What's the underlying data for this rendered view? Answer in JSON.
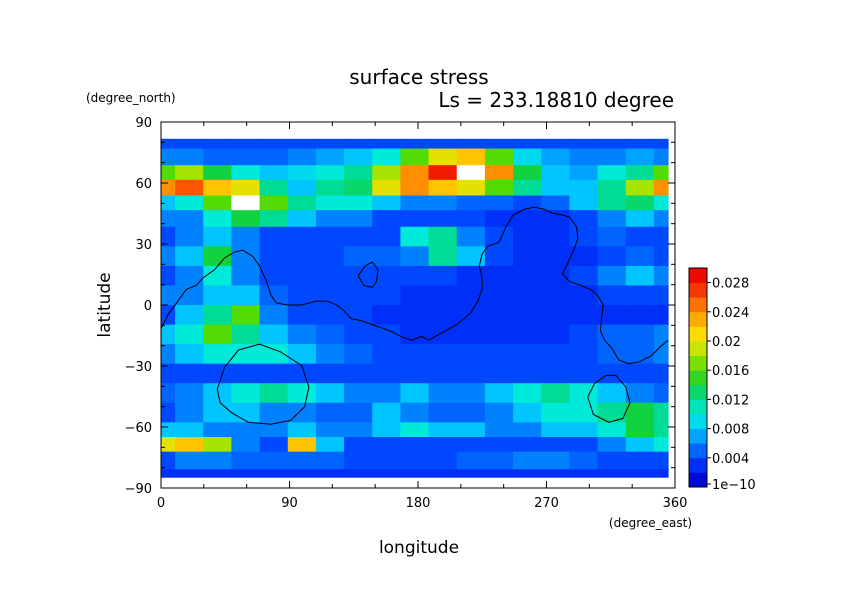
{
  "chart_data": {
    "type": "heatmap",
    "title": "surface stress",
    "subtitle": "Ls = 233.18810 degree",
    "xlabel": "longitude",
    "ylabel": "latitude",
    "x_units": "(degree_east)",
    "y_units": "(degree_north)",
    "xlim": [
      0,
      360
    ],
    "ylim": [
      -90,
      90
    ],
    "x_ticks": [
      "0",
      "90",
      "180",
      "270",
      "360"
    ],
    "y_ticks": [
      "90",
      "60",
      "30",
      "0",
      "−30",
      "−60",
      "−90"
    ],
    "colorbar": {
      "min": 0,
      "max": 0.03,
      "labels": [
        "1e−10",
        "0.004",
        "0.008",
        "0.012",
        "0.016",
        "0.02",
        "0.024",
        "0.028"
      ],
      "label_values": [
        0,
        0.004,
        0.008,
        0.012,
        0.016,
        0.02,
        0.024,
        0.028
      ]
    },
    "lon": [
      0,
      20,
      40,
      60,
      80,
      100,
      120,
      140,
      160,
      180,
      200,
      220,
      240,
      260,
      280,
      300,
      320,
      340,
      360
    ],
    "lat": [
      85,
      75,
      68,
      60,
      52,
      45,
      35,
      25,
      15,
      5,
      -5,
      -15,
      -25,
      -35,
      -45,
      -55,
      -65,
      -70,
      -80,
      -88
    ],
    "values": [
      [
        0.004,
        0.004,
        0.004,
        0.004,
        0.004,
        0.004,
        0.004,
        0.004,
        0.004,
        0.004,
        0.004,
        0.004,
        0.004,
        0.004,
        0.004,
        0.004,
        0.004,
        0.004,
        0.004
      ],
      [
        0.006,
        0.006,
        0.005,
        0.005,
        0.005,
        0.006,
        0.007,
        0.008,
        0.01,
        0.016,
        0.02,
        0.022,
        0.016,
        0.009,
        0.007,
        0.006,
        0.006,
        0.007,
        0.006
      ],
      [
        0.016,
        0.018,
        0.014,
        0.01,
        0.008,
        0.009,
        0.01,
        0.012,
        0.018,
        0.024,
        0.028,
        0.03,
        0.024,
        0.014,
        0.008,
        0.007,
        0.01,
        0.012,
        0.016
      ],
      [
        0.024,
        0.026,
        0.022,
        0.02,
        0.012,
        0.008,
        0.012,
        0.013,
        0.02,
        0.024,
        0.022,
        0.02,
        0.016,
        0.012,
        0.008,
        0.008,
        0.012,
        0.018,
        0.024
      ],
      [
        0.008,
        0.01,
        0.016,
        0.03,
        0.016,
        0.012,
        0.01,
        0.01,
        0.008,
        0.006,
        0.006,
        0.005,
        0.005,
        0.004,
        0.005,
        0.008,
        0.012,
        0.013,
        0.01
      ],
      [
        0.006,
        0.006,
        0.01,
        0.014,
        0.012,
        0.008,
        0.006,
        0.006,
        0.004,
        0.004,
        0.004,
        0.004,
        0.003,
        0.003,
        0.003,
        0.004,
        0.006,
        0.008,
        0.006
      ],
      [
        0.004,
        0.006,
        0.008,
        0.006,
        0.004,
        0.004,
        0.004,
        0.004,
        0.004,
        0.01,
        0.012,
        0.006,
        0.004,
        0.003,
        0.003,
        0.004,
        0.005,
        0.004,
        0.004
      ],
      [
        0.006,
        0.008,
        0.014,
        0.006,
        0.004,
        0.004,
        0.004,
        0.005,
        0.005,
        0.006,
        0.012,
        0.008,
        0.004,
        0.003,
        0.003,
        0.003,
        0.004,
        0.005,
        0.004
      ],
      [
        0.004,
        0.006,
        0.01,
        0.006,
        0.004,
        0.004,
        0.004,
        0.004,
        0.004,
        0.004,
        0.004,
        0.003,
        0.003,
        0.003,
        0.003,
        0.004,
        0.006,
        0.008,
        0.006
      ],
      [
        0.006,
        0.006,
        0.008,
        0.008,
        0.005,
        0.004,
        0.004,
        0.004,
        0.004,
        0.003,
        0.003,
        0.003,
        0.003,
        0.003,
        0.003,
        0.003,
        0.004,
        0.004,
        0.004
      ],
      [
        0.004,
        0.008,
        0.012,
        0.016,
        0.006,
        0.004,
        0.004,
        0.004,
        0.003,
        0.003,
        0.003,
        0.003,
        0.003,
        0.003,
        0.003,
        0.003,
        0.003,
        0.003,
        0.003
      ],
      [
        0.008,
        0.01,
        0.016,
        0.012,
        0.008,
        0.006,
        0.005,
        0.004,
        0.004,
        0.003,
        0.003,
        0.003,
        0.003,
        0.003,
        0.003,
        0.004,
        0.005,
        0.005,
        0.006
      ],
      [
        0.006,
        0.008,
        0.01,
        0.01,
        0.01,
        0.008,
        0.006,
        0.005,
        0.004,
        0.004,
        0.004,
        0.004,
        0.004,
        0.004,
        0.004,
        0.004,
        0.005,
        0.005,
        0.006
      ],
      [
        0.004,
        0.004,
        0.004,
        0.004,
        0.004,
        0.004,
        0.004,
        0.004,
        0.004,
        0.004,
        0.004,
        0.004,
        0.004,
        0.004,
        0.004,
        0.004,
        0.004,
        0.004,
        0.004
      ],
      [
        0.005,
        0.006,
        0.008,
        0.01,
        0.012,
        0.01,
        0.008,
        0.006,
        0.006,
        0.008,
        0.006,
        0.006,
        0.008,
        0.01,
        0.012,
        0.01,
        0.008,
        0.006,
        0.005
      ],
      [
        0.004,
        0.006,
        0.008,
        0.008,
        0.006,
        0.006,
        0.005,
        0.005,
        0.008,
        0.006,
        0.005,
        0.005,
        0.006,
        0.008,
        0.01,
        0.01,
        0.012,
        0.014,
        0.012
      ],
      [
        0.008,
        0.008,
        0.006,
        0.006,
        0.006,
        0.008,
        0.006,
        0.006,
        0.008,
        0.01,
        0.008,
        0.008,
        0.006,
        0.006,
        0.008,
        0.008,
        0.01,
        0.014,
        0.012
      ],
      [
        0.02,
        0.022,
        0.018,
        0.006,
        0.004,
        0.022,
        0.008,
        0.004,
        0.004,
        0.004,
        0.004,
        0.004,
        0.004,
        0.004,
        0.004,
        0.004,
        0.006,
        0.008,
        0.01
      ],
      [
        0.004,
        0.006,
        0.006,
        0.005,
        0.005,
        0.005,
        0.005,
        0.004,
        0.004,
        0.004,
        0.004,
        0.005,
        0.005,
        0.006,
        0.006,
        0.005,
        0.004,
        0.004,
        0.004
      ],
      [
        0.003,
        0.003,
        0.003,
        0.003,
        0.003,
        0.003,
        0.003,
        0.003,
        0.003,
        0.003,
        0.003,
        0.003,
        0.003,
        0.003,
        0.003,
        0.003,
        0.003,
        0.003,
        0.003
      ]
    ],
    "contour_lines": [
      {
        "name": "main-continent",
        "points": [
          [
            0,
            -12
          ],
          [
            5,
            -5
          ],
          [
            12,
            2
          ],
          [
            18,
            8
          ],
          [
            25,
            10
          ],
          [
            30,
            14
          ],
          [
            38,
            18
          ],
          [
            45,
            24
          ],
          [
            52,
            27
          ],
          [
            58,
            28
          ],
          [
            65,
            25
          ],
          [
            70,
            20
          ],
          [
            75,
            12
          ],
          [
            78,
            5
          ],
          [
            82,
            1
          ],
          [
            90,
            0
          ],
          [
            100,
            0
          ],
          [
            110,
            2
          ],
          [
            118,
            2
          ],
          [
            125,
            0
          ],
          [
            130,
            -3
          ],
          [
            135,
            -7
          ],
          [
            142,
            -8
          ],
          [
            150,
            -10
          ],
          [
            158,
            -12
          ],
          [
            165,
            -14
          ],
          [
            170,
            -16
          ],
          [
            178,
            -18
          ],
          [
            185,
            -16
          ],
          [
            190,
            -18
          ],
          [
            200,
            -14
          ],
          [
            210,
            -10
          ],
          [
            220,
            -4
          ],
          [
            225,
            2
          ],
          [
            228,
            8
          ],
          [
            228,
            14
          ],
          [
            226,
            20
          ],
          [
            228,
            26
          ],
          [
            232,
            30
          ],
          [
            240,
            32
          ],
          [
            245,
            40
          ],
          [
            250,
            46
          ],
          [
            258,
            49
          ],
          [
            265,
            50
          ],
          [
            272,
            49
          ],
          [
            278,
            47
          ],
          [
            285,
            46
          ],
          [
            290,
            45
          ],
          [
            295,
            40
          ],
          [
            296,
            34
          ],
          [
            293,
            28
          ],
          [
            288,
            20
          ],
          [
            285,
            16
          ],
          [
            290,
            12
          ],
          [
            298,
            10
          ],
          [
            305,
            8
          ],
          [
            310,
            5
          ],
          [
            314,
            0
          ],
          [
            313,
            -6
          ],
          [
            312,
            -13
          ],
          [
            315,
            -18
          ],
          [
            320,
            -22
          ],
          [
            325,
            -28
          ],
          [
            332,
            -30
          ],
          [
            340,
            -29
          ],
          [
            348,
            -26
          ],
          [
            355,
            -21
          ],
          [
            360,
            -18
          ]
        ]
      },
      {
        "name": "south-west-basin",
        "points": [
          [
            40,
            -43
          ],
          [
            45,
            -32
          ],
          [
            55,
            -23
          ],
          [
            70,
            -20
          ],
          [
            85,
            -24
          ],
          [
            100,
            -31
          ],
          [
            105,
            -42
          ],
          [
            102,
            -52
          ],
          [
            92,
            -59
          ],
          [
            78,
            -61
          ],
          [
            62,
            -60
          ],
          [
            50,
            -55
          ],
          [
            42,
            -50
          ],
          [
            40,
            -43
          ]
        ]
      },
      {
        "name": "north-island",
        "points": [
          [
            140,
            15
          ],
          [
            145,
            20
          ],
          [
            150,
            22
          ],
          [
            154,
            18
          ],
          [
            153,
            12
          ],
          [
            150,
            9
          ],
          [
            144,
            10
          ],
          [
            140,
            15
          ]
        ]
      },
      {
        "name": "south-east-basin",
        "points": [
          [
            303,
            -47
          ],
          [
            308,
            -40
          ],
          [
            316,
            -36
          ],
          [
            323,
            -36
          ],
          [
            330,
            -42
          ],
          [
            333,
            -50
          ],
          [
            328,
            -58
          ],
          [
            318,
            -60
          ],
          [
            307,
            -56
          ],
          [
            303,
            -47
          ]
        ]
      }
    ]
  }
}
